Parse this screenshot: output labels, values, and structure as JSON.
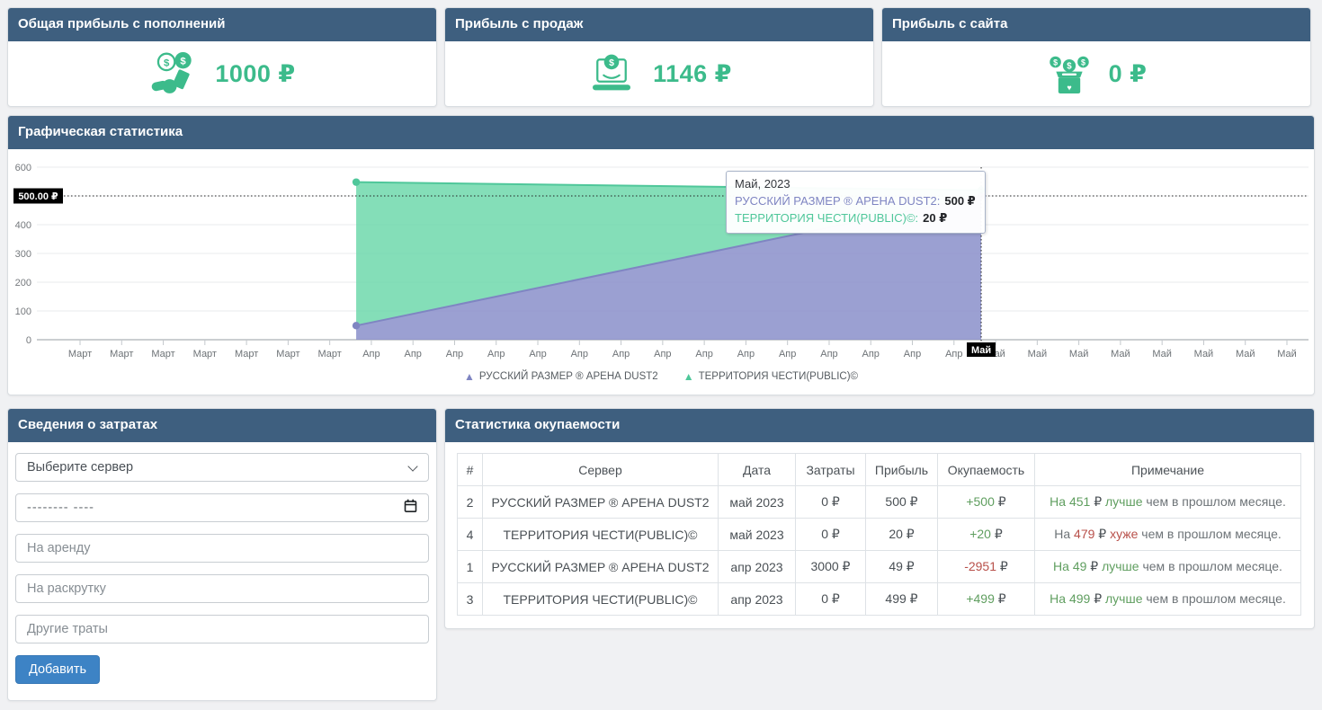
{
  "theme": {
    "header_bg": "#3e5f7f",
    "accent_green": "#3cbb8b",
    "button_blue": "#3d83c5",
    "good_green": "#5f9e5f",
    "bad_red": "#b8504a"
  },
  "stat_cards": [
    {
      "title": "Общая прибыль с пополнений",
      "value": "1000 ₽",
      "icon": "hand-coins-icon"
    },
    {
      "title": "Прибыль с продаж",
      "value": "1146 ₽",
      "icon": "laptop-coin-icon"
    },
    {
      "title": "Прибыль с сайта",
      "value": "0 ₽",
      "icon": "donation-box-icon"
    }
  ],
  "chart_panel": {
    "title": "Графическая статистика"
  },
  "chart_data": {
    "type": "area",
    "stacked": true,
    "title": "Графическая статистика",
    "ylim": [
      0,
      600
    ],
    "yticks": [
      600,
      500,
      400,
      300,
      200,
      100,
      0
    ],
    "grid": "horizontal",
    "x_tick_labels": [
      "Март",
      "Март",
      "Март",
      "Март",
      "Март",
      "Март",
      "Март",
      "Апр",
      "Апр",
      "Апр",
      "Апр",
      "Апр",
      "Апр",
      "Апр",
      "Апр",
      "Апр",
      "Апр",
      "Апр",
      "Апр",
      "Апр",
      "Апр",
      "Апр",
      "Май",
      "Май",
      "Май",
      "Май",
      "Май",
      "Май",
      "Май",
      "Май"
    ],
    "series": [
      {
        "name": "РУССКИЙ РАЗМЕР ® АРЕНА DUST2",
        "color": "#7f85c2",
        "fill": "rgba(138,143,202,0.85)",
        "points": [
          {
            "x": "Апр 2023",
            "y": 49
          },
          {
            "x": "Май 2023",
            "y": 500
          }
        ]
      },
      {
        "name": "ТЕРРИТОРИЯ ЧЕСТИ(PUBLIC)©",
        "color": "#4fc79a",
        "fill": "rgba(110,216,171,0.85)",
        "points": [
          {
            "x": "Апр 2023",
            "y": 499
          },
          {
            "x": "Май 2023",
            "y": 20
          }
        ]
      }
    ],
    "legend": [
      "РУССКИЙ РАЗМЕР ® АРЕНА DUST2",
      "ТЕРРИТОРИЯ ЧЕСТИ(PUBLIC)©"
    ],
    "legend_position": "bottom",
    "crosshair": {
      "x_label": "Май",
      "y_label": "500.00 ₽",
      "y_value": 500
    },
    "tooltip": {
      "title": "Май, 2023",
      "rows": [
        {
          "label": "РУССКИЙ РАЗМЕР ® АРЕНА DUST2:",
          "value": "500 ₽",
          "color": "#7f85c2"
        },
        {
          "label": "ТЕРРИТОРИЯ ЧЕСТИ(PUBLIC)©:",
          "value": "20 ₽",
          "color": "#4fc79a"
        }
      ]
    },
    "layout": {
      "data_start_frac": 0.2511,
      "data_end_frac": 0.7426
    }
  },
  "costs_panel": {
    "title": "Сведения о затратах",
    "server_select": {
      "value": "Выберите сервер"
    },
    "date_input": {
      "value": "-------- ----"
    },
    "rent_input": {
      "placeholder": "На аренду"
    },
    "promo_input": {
      "placeholder": "На раскрутку"
    },
    "other_input": {
      "placeholder": "Другие траты"
    },
    "submit_label": "Добавить"
  },
  "payback_panel": {
    "title": "Статистика окупаемости",
    "table": {
      "columns": [
        "#",
        "Сервер",
        "Дата",
        "Затраты",
        "Прибыль",
        "Окупаемость",
        "Примечание"
      ],
      "rows": [
        {
          "num": "2",
          "server": "РУССКИЙ РАЗМЕР ® АРЕНА DUST2",
          "date": "май 2023",
          "costs": "0 ₽",
          "profit": "500 ₽",
          "payback": {
            "amount": "+500",
            "suffix": " ₽",
            "cls": "good"
          },
          "note": [
            {
              "t": "На 451",
              "c": "good"
            },
            {
              "t": " ₽ ",
              "c": "cur"
            },
            {
              "t": "лучше",
              "c": "good"
            },
            {
              "t": " чем в прошлом месяце.",
              "c": "muted"
            }
          ]
        },
        {
          "num": "4",
          "server": "ТЕРРИТОРИЯ ЧЕСТИ(PUBLIC)©",
          "date": "май 2023",
          "costs": "0 ₽",
          "profit": "20 ₽",
          "payback": {
            "amount": "+20",
            "suffix": " ₽",
            "cls": "good"
          },
          "note": [
            {
              "t": "На ",
              "c": "muted"
            },
            {
              "t": "479",
              "c": "bad"
            },
            {
              "t": " ₽ ",
              "c": "cur"
            },
            {
              "t": "хуже",
              "c": "bad"
            },
            {
              "t": " чем в прошлом месяце.",
              "c": "muted"
            }
          ]
        },
        {
          "num": "1",
          "server": "РУССКИЙ РАЗМЕР ® АРЕНА DUST2",
          "date": "апр 2023",
          "costs": "3000 ₽",
          "profit": "49 ₽",
          "payback": {
            "amount": "-2951",
            "suffix": " ₽",
            "cls": "bad"
          },
          "note": [
            {
              "t": "На 49",
              "c": "good"
            },
            {
              "t": " ₽ ",
              "c": "cur"
            },
            {
              "t": "лучше",
              "c": "good"
            },
            {
              "t": " чем в прошлом месяце.",
              "c": "muted"
            }
          ]
        },
        {
          "num": "3",
          "server": "ТЕРРИТОРИЯ ЧЕСТИ(PUBLIC)©",
          "date": "апр 2023",
          "costs": "0 ₽",
          "profit": "499 ₽",
          "payback": {
            "amount": "+499",
            "suffix": " ₽",
            "cls": "good"
          },
          "note": [
            {
              "t": "На 499",
              "c": "good"
            },
            {
              "t": " ₽ ",
              "c": "cur"
            },
            {
              "t": "лучше",
              "c": "good"
            },
            {
              "t": " чем в прошлом месяце.",
              "c": "muted"
            }
          ]
        }
      ]
    }
  }
}
